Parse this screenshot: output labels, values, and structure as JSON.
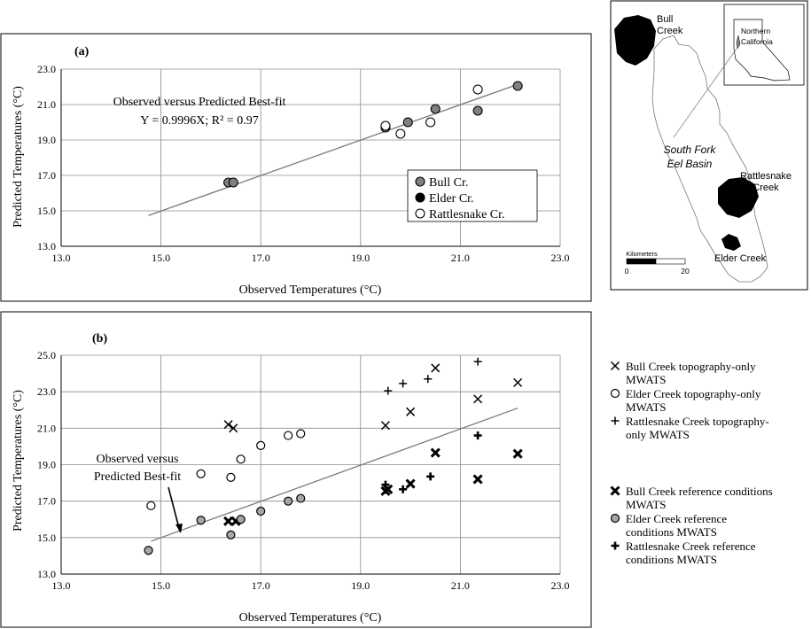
{
  "chart_data": [
    {
      "id": "a",
      "type": "scatter",
      "panel_label": "(a)",
      "xlabel": "Observed Temperatures (°C)",
      "ylabel": "Predicted Temperatures (°C)",
      "xlim": [
        13.0,
        23.0
      ],
      "ylim": [
        13.0,
        23.0
      ],
      "xticks": [
        "13.0",
        "15.0",
        "17.0",
        "19.0",
        "21.0",
        "23.0"
      ],
      "yticks": [
        "13.0",
        "15.0",
        "17.0",
        "19.0",
        "21.0",
        "23.0"
      ],
      "grid": "vertical and horizontal at ticks",
      "annotation_lines": [
        "Observed versus Predicted Best-fit",
        "Y = 0.9996X; R² = 0.97"
      ],
      "fit_line": {
        "x": [
          14.75,
          22.15
        ],
        "y": [
          14.74,
          22.14
        ]
      },
      "legend_position": "lower-right",
      "series": [
        {
          "name": "Bull Cr.",
          "marker": "circle",
          "fill": "#808080",
          "x": [
            16.35,
            16.45,
            19.5,
            19.95,
            20.5,
            21.35,
            22.15
          ],
          "y": [
            16.6,
            16.6,
            19.7,
            20.0,
            20.75,
            20.65,
            22.05
          ]
        },
        {
          "name": "Elder Cr.",
          "marker": "circle",
          "fill": "#000000",
          "x": [],
          "y": []
        },
        {
          "name": "Rattlesnake Cr.",
          "marker": "circle",
          "fill": "#ffffff",
          "x": [
            19.5,
            19.8,
            20.4,
            21.35
          ],
          "y": [
            19.8,
            19.35,
            20.0,
            21.85
          ]
        }
      ]
    },
    {
      "id": "b",
      "type": "scatter",
      "panel_label": "(b)",
      "xlabel": "Observed Temperatures (°C)",
      "ylabel": "Predicted Temperatures (°C)",
      "xlim": [
        13.0,
        23.0
      ],
      "ylim": [
        13.0,
        25.0
      ],
      "xticks": [
        "13.0",
        "15.0",
        "17.0",
        "19.0",
        "21.0",
        "23.0"
      ],
      "yticks": [
        "13.0",
        "15.0",
        "17.0",
        "19.0",
        "21.0",
        "23.0",
        "25.0"
      ],
      "grid": "vertical and horizontal at ticks",
      "annotation_lines": [
        "Observed versus",
        "Predicted  Best-fit"
      ],
      "fit_line": {
        "x": [
          14.8,
          22.15
        ],
        "y": [
          14.8,
          22.1
        ]
      },
      "legend_position": "right",
      "legend_groups": [
        [
          {
            "series": 0,
            "lines": [
              "Bull Creek topography-only",
              "MWATS"
            ]
          },
          {
            "series": 1,
            "lines": [
              "Elder Creek  topography-only",
              "MWATS"
            ]
          },
          {
            "series": 2,
            "lines": [
              "Rattlesnake Creek  topography-",
              "only MWATS"
            ]
          }
        ],
        [
          {
            "series": 3,
            "lines": [
              "Bull Creek reference conditions",
              "MWATS"
            ]
          },
          {
            "series": 4,
            "lines": [
              "Elder Creek reference",
              "conditions MWATS"
            ]
          },
          {
            "series": 5,
            "lines": [
              "Rattlesnake Creek reference",
              "conditions MWATS"
            ]
          }
        ]
      ],
      "series": [
        {
          "name": "Bull Creek topography-only MWATS",
          "marker": "x",
          "x": [
            16.35,
            16.45,
            19.5,
            20.0,
            20.5,
            21.35,
            22.15
          ],
          "y": [
            21.2,
            21.0,
            21.15,
            21.9,
            24.3,
            22.6,
            23.5
          ]
        },
        {
          "name": "Elder Creek  topography-only MWATS",
          "marker": "circle-open",
          "x": [
            14.8,
            15.8,
            16.4,
            16.6,
            17.0,
            17.55,
            17.8
          ],
          "y": [
            16.75,
            18.5,
            18.3,
            19.3,
            20.05,
            20.6,
            20.7
          ]
        },
        {
          "name": "Rattlesnake Creek  topography-only MWATS",
          "marker": "plus",
          "x": [
            19.55,
            19.85,
            20.35,
            21.35
          ],
          "y": [
            23.05,
            23.45,
            23.7,
            24.65
          ]
        },
        {
          "name": "Bull Creek reference conditions MWATS",
          "marker": "x-bold",
          "x": [
            16.35,
            16.5,
            19.5,
            19.55,
            20.0,
            20.5,
            21.35,
            22.15
          ],
          "y": [
            15.9,
            15.9,
            17.55,
            17.65,
            17.95,
            19.65,
            18.2,
            19.6
          ]
        },
        {
          "name": "Elder Creek reference conditions MWATS",
          "marker": "circle-gray",
          "x": [
            14.75,
            15.8,
            16.4,
            16.6,
            17.0,
            17.55,
            17.8
          ],
          "y": [
            14.3,
            15.95,
            15.15,
            16.0,
            16.45,
            17.0,
            17.15
          ]
        },
        {
          "name": "Rattlesnake Creek reference conditions MWATS",
          "marker": "plus-bold",
          "x": [
            19.5,
            19.85,
            20.4,
            21.35
          ],
          "y": [
            17.9,
            17.65,
            18.35,
            20.6
          ]
        }
      ]
    }
  ],
  "map": {
    "labels": {
      "bull": [
        "Bull",
        "Creek"
      ],
      "northern": [
        "Northern",
        "California"
      ],
      "basin": [
        "South Fork",
        "Eel Basin"
      ],
      "rattlesnake": [
        "Rattlesnake",
        "Creek"
      ],
      "elder": "Elder Creek",
      "scale_title": "Kilometers",
      "scale_min": "0",
      "scale_max": "20"
    }
  }
}
